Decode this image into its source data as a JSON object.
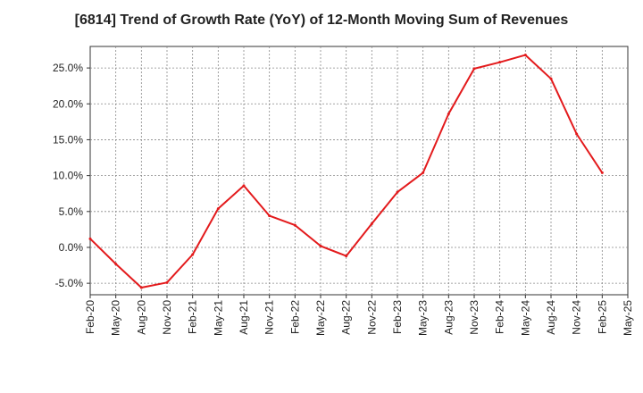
{
  "chart_data": {
    "type": "line",
    "title": "[6814]  Trend of Growth Rate (YoY) of 12-Month Moving Sum of Revenues",
    "xlabel": "",
    "ylabel": "",
    "x_tick_labels": [
      "Feb-20",
      "May-20",
      "Aug-20",
      "Nov-20",
      "Feb-21",
      "May-21",
      "Aug-21",
      "Nov-21",
      "Feb-22",
      "May-22",
      "Aug-22",
      "Nov-22",
      "Feb-23",
      "May-23",
      "Aug-23",
      "Nov-23",
      "Feb-24",
      "May-24",
      "Aug-24",
      "Nov-24",
      "Feb-25",
      "May-25"
    ],
    "y_tick_labels": [
      "-5.0%",
      "0.0%",
      "5.0%",
      "10.0%",
      "15.0%",
      "20.0%",
      "25.0%"
    ],
    "y_ticks": [
      -5,
      0,
      5,
      10,
      15,
      20,
      25
    ],
    "ylim": [
      -6.6,
      28
    ],
    "grid": true,
    "line_color": "#e31a1c",
    "series": [
      {
        "x": [
          "Feb-20",
          "May-20",
          "Aug-20",
          "Nov-20",
          "Feb-21",
          "May-21",
          "Aug-21",
          "Nov-21",
          "Feb-22",
          "May-22",
          "Aug-22",
          "Nov-22",
          "Feb-23",
          "May-23",
          "Aug-23",
          "Nov-23",
          "Feb-24",
          "May-24",
          "Aug-24",
          "Nov-24",
          "Feb-25"
        ],
        "values": [
          1.2,
          -2.3,
          -5.6,
          -4.9,
          -1.0,
          5.4,
          8.6,
          4.4,
          3.1,
          0.2,
          -1.2,
          3.3,
          7.7,
          10.4,
          18.6,
          24.9,
          25.8,
          26.8,
          23.5,
          15.8,
          10.4
        ]
      }
    ]
  }
}
